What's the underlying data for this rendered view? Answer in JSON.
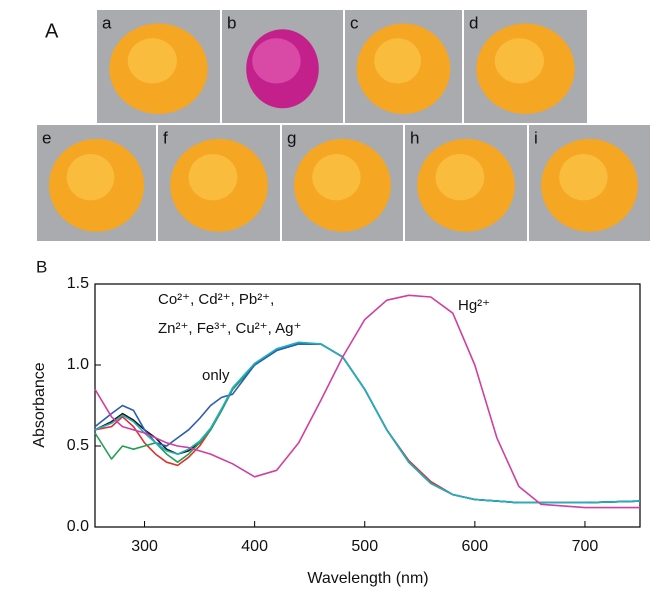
{
  "figure_labels": [
    "A",
    "B"
  ],
  "photo_labels": [
    "a",
    "b",
    "c",
    "d",
    "e",
    "f",
    "g",
    "h",
    "i"
  ],
  "chart_data": {
    "type": "line",
    "x_label": "Wavelength (nm)",
    "y_label": "Absorbance",
    "x": [
      255,
      270,
      280,
      290,
      300,
      310,
      320,
      330,
      340,
      350,
      360,
      370,
      380,
      400,
      420,
      440,
      460,
      480,
      500,
      520,
      540,
      560,
      580,
      600,
      620,
      640,
      660,
      700,
      750
    ],
    "xlim": [
      255,
      750
    ],
    "xticks": [
      300,
      400,
      500,
      600,
      700
    ],
    "ylim": [
      0,
      1.5
    ],
    "yticks": [
      {
        "value": 0,
        "label": "0.0"
      },
      0.5,
      {
        "value": 1,
        "label": "1.0"
      },
      1.5
    ],
    "series": [
      {
        "color": "#1a1a1a",
        "values": [
          0.6,
          0.65,
          0.7,
          0.66,
          0.6,
          0.55,
          0.48,
          0.45,
          0.47,
          0.52,
          0.6,
          0.72,
          0.85,
          1.0,
          1.09,
          1.13,
          1.13,
          1.05,
          0.85,
          0.6,
          0.4,
          0.27,
          0.2,
          0.17,
          0.16,
          0.15,
          0.15,
          0.15,
          0.16
        ]
      },
      {
        "color": "#e03030",
        "values": [
          0.6,
          0.62,
          0.68,
          0.62,
          0.52,
          0.45,
          0.4,
          0.38,
          0.43,
          0.5,
          0.6,
          0.72,
          0.85,
          1.0,
          1.09,
          1.13,
          1.13,
          1.05,
          0.85,
          0.6,
          0.41,
          0.28,
          0.2,
          0.17,
          0.16,
          0.15,
          0.15,
          0.15,
          0.16
        ]
      },
      {
        "color": "#22a050",
        "values": [
          0.58,
          0.42,
          0.5,
          0.48,
          0.5,
          0.52,
          0.45,
          0.4,
          0.45,
          0.52,
          0.6,
          0.72,
          0.85,
          1.0,
          1.09,
          1.13,
          1.13,
          1.05,
          0.85,
          0.6,
          0.4,
          0.27,
          0.2,
          0.17,
          0.16,
          0.15,
          0.15,
          0.15,
          0.16
        ]
      },
      {
        "color": "#2a5cb8",
        "values": [
          0.62,
          0.7,
          0.75,
          0.72,
          0.6,
          0.52,
          0.5,
          0.55,
          0.6,
          0.67,
          0.75,
          0.8,
          0.82,
          1.0,
          1.09,
          1.13,
          1.13,
          1.05,
          0.85,
          0.6,
          0.4,
          0.27,
          0.2,
          0.17,
          0.16,
          0.15,
          0.15,
          0.15,
          0.16
        ]
      },
      {
        "color": "#20b0c0",
        "values": [
          0.6,
          0.64,
          0.69,
          0.65,
          0.58,
          0.52,
          0.47,
          0.45,
          0.48,
          0.53,
          0.61,
          0.73,
          0.86,
          1.01,
          1.1,
          1.14,
          1.13,
          1.05,
          0.85,
          0.6,
          0.4,
          0.27,
          0.2,
          0.17,
          0.16,
          0.15,
          0.15,
          0.15,
          0.16
        ]
      },
      {
        "color": "#d040a0",
        "values": [
          0.85,
          0.68,
          0.62,
          0.6,
          0.58,
          0.55,
          0.52,
          0.5,
          0.49,
          0.47,
          0.45,
          0.42,
          0.39,
          0.31,
          0.35,
          0.52,
          0.78,
          1.05,
          1.28,
          1.4,
          1.43,
          1.42,
          1.32,
          1.0,
          0.55,
          0.25,
          0.14,
          0.12,
          0.12
        ]
      }
    ],
    "annotations": [
      "Co²⁺, Cd²⁺, Pb²⁺,",
      "Zn²⁺, Fe³⁺, Cu²⁺,  Ag⁺",
      "only",
      "Hg²⁺"
    ]
  }
}
